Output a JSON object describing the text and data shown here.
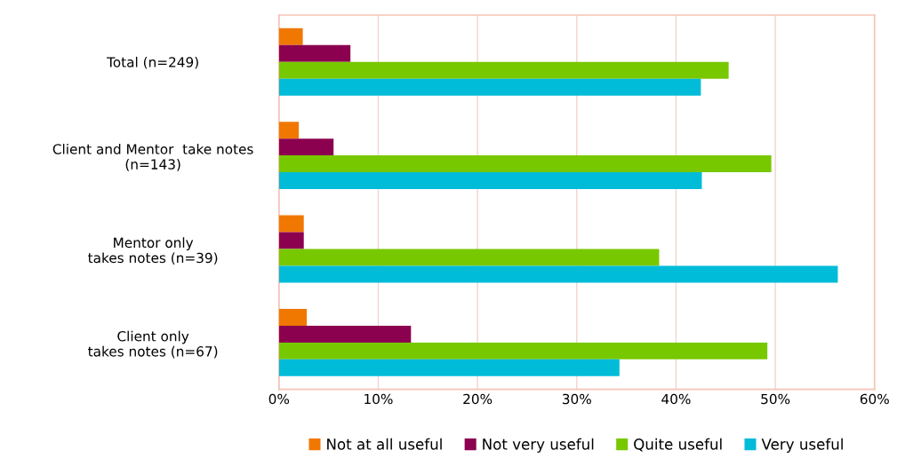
{
  "chart_data": {
    "type": "bar",
    "orientation": "horizontal",
    "categories": [
      "Total (n=249)",
      "Client and Mentor  take notes\n(n=143)",
      "Mentor only\ntakes notes (n=39)",
      "Client only\ntakes notes (n=67)"
    ],
    "series": [
      {
        "name": "Not at all useful",
        "color": "#f07800",
        "values": [
          2.4,
          2.0,
          2.5,
          2.8
        ]
      },
      {
        "name": "Not very useful",
        "color": "#8c0050",
        "values": [
          7.2,
          5.5,
          2.5,
          13.3
        ]
      },
      {
        "name": "Quite useful",
        "color": "#78c800",
        "values": [
          45.3,
          49.6,
          38.3,
          49.2
        ]
      },
      {
        "name": "Very useful",
        "color": "#00bcd8",
        "values": [
          42.5,
          42.6,
          56.3,
          34.3
        ]
      }
    ],
    "xlim": [
      0,
      60
    ],
    "xticks": [
      {
        "value": 0,
        "label": "0%"
      },
      {
        "value": 10,
        "label": "10%"
      },
      {
        "value": 20,
        "label": "20%"
      },
      {
        "value": 30,
        "label": "30%"
      },
      {
        "value": 40,
        "label": "40%"
      },
      {
        "value": 50,
        "label": "50%"
      },
      {
        "value": 60,
        "label": "60%"
      }
    ],
    "grid": true,
    "legend": "bottom"
  }
}
